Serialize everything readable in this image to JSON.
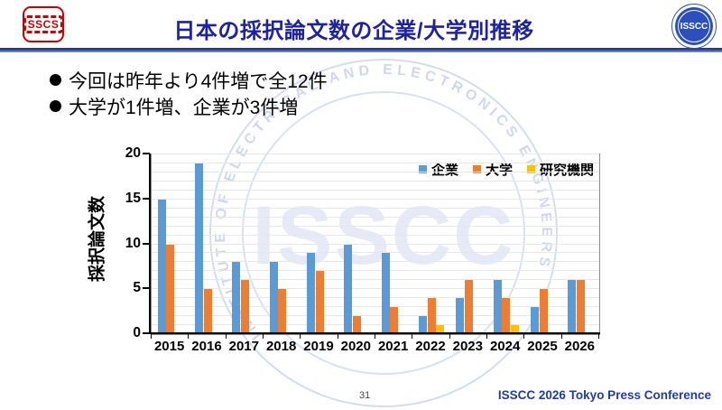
{
  "header": {
    "sscs_logo": "SSCS",
    "title": "日本の採択論文数の企業/大学別推移",
    "isscc_logo": "ISSCC"
  },
  "bullets": [
    "今回は昨年より4件増で全12件",
    "大学が1件増、企業が3件増"
  ],
  "chart_data": {
    "type": "bar",
    "title": "",
    "categories": [
      "2015",
      "2016",
      "2017",
      "2018",
      "2019",
      "2020",
      "2021",
      "2022",
      "2023",
      "2024",
      "2025",
      "2026"
    ],
    "series": [
      {
        "name": "企業",
        "color": "#5B9BD5",
        "values": [
          15,
          19,
          8,
          8,
          9,
          10,
          9,
          2,
          4,
          6,
          3,
          6
        ]
      },
      {
        "name": "大学",
        "color": "#ED7D31",
        "values": [
          10,
          5,
          6,
          5,
          7,
          2,
          3,
          4,
          6,
          4,
          5,
          6
        ]
      },
      {
        "name": "研究機関",
        "color": "#FFC000",
        "values": [
          0,
          0,
          0,
          0,
          0,
          0,
          0,
          1,
          0,
          1,
          0,
          0
        ]
      }
    ],
    "xlabel": "",
    "ylabel": "採択論文数",
    "ylim": [
      0,
      20
    ],
    "yticks": [
      0,
      5,
      10,
      15,
      20
    ],
    "grid": "horizontal gridlines every 1 unit",
    "legend_position": "top-right inside plot"
  },
  "watermark": {
    "center_text": "ISSCC",
    "ring_text": "INSTITUTE OF ELECTRICAL AND ELECTRONICS ENGINEERS"
  },
  "footer": {
    "page_number": "31",
    "conference": "ISSCC 2026 Tokyo Press Conference"
  }
}
